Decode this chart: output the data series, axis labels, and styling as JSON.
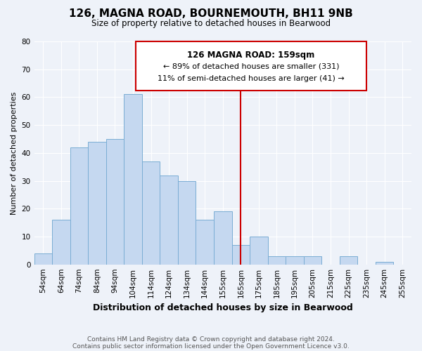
{
  "title": "126, MAGNA ROAD, BOURNEMOUTH, BH11 9NB",
  "subtitle": "Size of property relative to detached houses in Bearwood",
  "xlabel": "Distribution of detached houses by size in Bearwood",
  "ylabel": "Number of detached properties",
  "footnote1": "Contains HM Land Registry data © Crown copyright and database right 2024.",
  "footnote2": "Contains public sector information licensed under the Open Government Licence v3.0.",
  "bin_labels": [
    "54sqm",
    "64sqm",
    "74sqm",
    "84sqm",
    "94sqm",
    "104sqm",
    "114sqm",
    "124sqm",
    "134sqm",
    "144sqm",
    "155sqm",
    "165sqm",
    "175sqm",
    "185sqm",
    "195sqm",
    "205sqm",
    "215sqm",
    "225sqm",
    "235sqm",
    "245sqm",
    "255sqm"
  ],
  "bar_heights": [
    4,
    16,
    42,
    44,
    45,
    61,
    37,
    32,
    30,
    16,
    19,
    7,
    10,
    3,
    3,
    3,
    0,
    3,
    0,
    1,
    0
  ],
  "bar_color": "#c5d8f0",
  "bar_edge_color": "#7aadd4",
  "vline_x": 11.0,
  "vline_color": "#cc0000",
  "annotation_title": "126 MAGNA ROAD: 159sqm",
  "annotation_line1": "← 89% of detached houses are smaller (331)",
  "annotation_line2": "11% of semi-detached houses are larger (41) →",
  "annotation_box_color": "#ffffff",
  "annotation_box_edge": "#cc0000",
  "ylim": [
    0,
    80
  ],
  "yticks": [
    0,
    10,
    20,
    30,
    40,
    50,
    60,
    70,
    80
  ],
  "bg_color": "#eef2f9",
  "grid_color": "#ffffff",
  "title_fontsize": 11,
  "subtitle_fontsize": 8.5,
  "ylabel_fontsize": 8,
  "xlabel_fontsize": 9,
  "tick_fontsize": 7.5,
  "footnote_fontsize": 6.5
}
